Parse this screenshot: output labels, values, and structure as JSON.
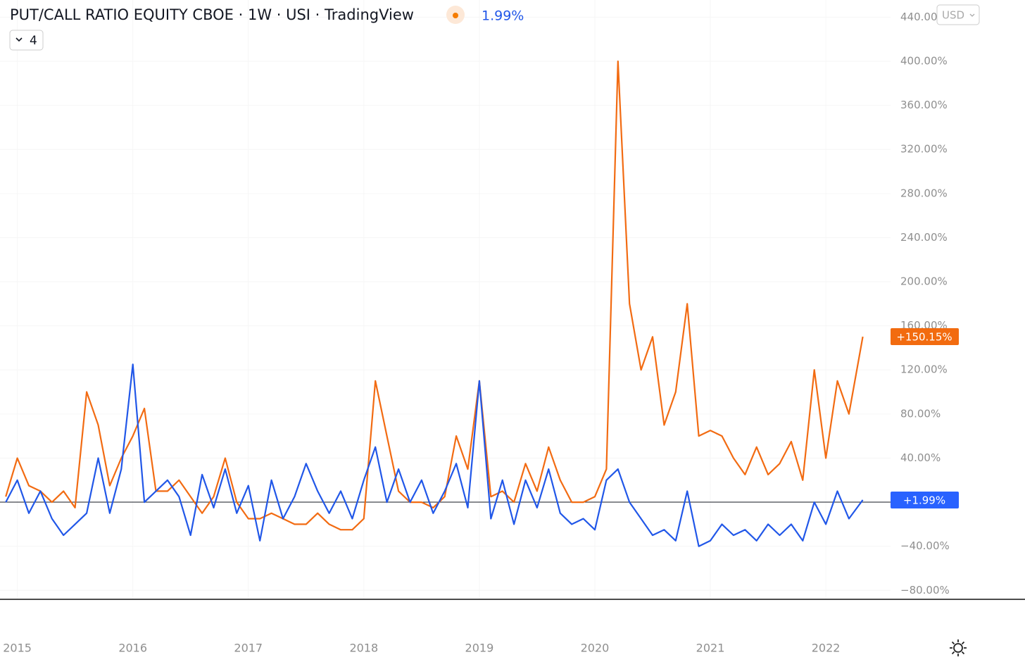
{
  "header": {
    "title": "PUT/CALL RATIO EQUITY CBOE · 1W · USI · TradingView",
    "change": "1.99%",
    "legend_count": "4",
    "currency": "USD"
  },
  "chart_data": {
    "type": "line",
    "x": [
      2014.9,
      2015.0,
      2015.1,
      2015.2,
      2015.3,
      2015.4,
      2015.5,
      2015.6,
      2015.7,
      2015.8,
      2015.9,
      2016.0,
      2016.1,
      2016.2,
      2016.3,
      2016.4,
      2016.5,
      2016.6,
      2016.7,
      2016.8,
      2016.9,
      2017.0,
      2017.1,
      2017.2,
      2017.3,
      2017.4,
      2017.5,
      2017.6,
      2017.7,
      2017.8,
      2017.9,
      2018.0,
      2018.1,
      2018.2,
      2018.3,
      2018.4,
      2018.5,
      2018.6,
      2018.7,
      2018.8,
      2018.9,
      2019.0,
      2019.1,
      2019.2,
      2019.3,
      2019.4,
      2019.5,
      2019.6,
      2019.7,
      2019.8,
      2019.9,
      2020.0,
      2020.1,
      2020.2,
      2020.3,
      2020.4,
      2020.5,
      2020.6,
      2020.7,
      2020.8,
      2020.9,
      2021.0,
      2021.1,
      2021.2,
      2021.3,
      2021.4,
      2021.5,
      2021.6,
      2021.7,
      2021.8,
      2021.9,
      2022.0,
      2022.1,
      2022.2,
      2022.32
    ],
    "series": [
      {
        "color": "#f26b12",
        "label_color": "#f26b0f",
        "values": [
          5,
          40,
          15,
          10,
          0,
          10,
          -5,
          100,
          70,
          15,
          40,
          60,
          85,
          10,
          10,
          20,
          5,
          -10,
          5,
          40,
          0,
          -15,
          -15,
          -10,
          -15,
          -20,
          -20,
          -10,
          -20,
          -25,
          -25,
          -15,
          110,
          60,
          10,
          0,
          0,
          -5,
          5,
          60,
          30,
          110,
          5,
          10,
          0,
          35,
          10,
          50,
          20,
          0,
          0,
          5,
          30,
          400,
          180,
          120,
          150,
          70,
          100,
          180,
          60,
          65,
          60,
          40,
          25,
          50,
          25,
          35,
          55,
          20,
          120,
          40,
          110,
          80,
          150.15
        ],
        "value_labels": [
          null,
          null,
          null,
          null,
          null,
          null,
          null,
          null,
          null,
          null,
          null,
          null,
          null,
          null,
          null,
          null,
          null,
          null,
          null,
          null,
          null,
          null,
          null,
          null,
          null,
          null,
          null,
          null,
          null,
          null,
          null,
          null,
          null,
          null,
          null,
          null,
          null,
          null,
          null,
          null,
          null,
          null,
          null,
          null,
          null,
          null,
          null,
          null,
          null,
          null,
          null,
          null,
          null,
          null,
          null,
          null,
          null,
          null,
          null,
          null,
          null,
          null,
          null,
          null,
          null,
          null,
          null,
          null,
          null,
          null,
          null,
          null,
          null,
          null,
          "+150.15%"
        ]
      },
      {
        "color": "#2157e8",
        "label_color": "#2962ff",
        "values": [
          0,
          20,
          -10,
          10,
          -15,
          -30,
          -20,
          -10,
          40,
          -10,
          30,
          125,
          0,
          10,
          20,
          5,
          -30,
          25,
          -5,
          30,
          -10,
          15,
          -35,
          20,
          -15,
          5,
          35,
          10,
          -10,
          10,
          -15,
          20,
          50,
          0,
          30,
          0,
          20,
          -10,
          10,
          35,
          -5,
          110,
          -15,
          20,
          -20,
          20,
          -5,
          30,
          -10,
          -20,
          -15,
          -25,
          20,
          30,
          0,
          -15,
          -30,
          -25,
          -35,
          10,
          -40,
          -35,
          -20,
          -30,
          -25,
          -35,
          -20,
          -30,
          -20,
          -35,
          0,
          -20,
          10,
          -15,
          1.99
        ],
        "value_labels": [
          null,
          null,
          null,
          null,
          null,
          null,
          null,
          null,
          null,
          null,
          null,
          null,
          null,
          null,
          null,
          null,
          null,
          null,
          null,
          null,
          null,
          null,
          null,
          null,
          null,
          null,
          null,
          null,
          null,
          null,
          null,
          null,
          null,
          null,
          null,
          null,
          null,
          null,
          null,
          null,
          null,
          null,
          null,
          null,
          null,
          null,
          null,
          null,
          null,
          null,
          null,
          null,
          null,
          null,
          null,
          null,
          null,
          null,
          null,
          null,
          null,
          null,
          null,
          null,
          null,
          null,
          null,
          null,
          null,
          null,
          null,
          null,
          null,
          null,
          "+1.99%"
        ]
      }
    ],
    "xlim": [
      2014.85,
      2022.56
    ],
    "xticks": [
      2015,
      2016,
      2017,
      2018,
      2019,
      2020,
      2021,
      2022
    ],
    "ylim": [
      -87.5,
      455.6
    ],
    "yticks": [
      {
        "value": -80,
        "label": "−80.00%"
      },
      {
        "value": -40,
        "label": "−40.00%"
      },
      {
        "value": 40,
        "label": "40.00%"
      },
      {
        "value": 80,
        "label": "80.00%"
      },
      {
        "value": 120,
        "label": "120.00%"
      },
      {
        "value": 160,
        "label": "160.00%"
      },
      {
        "value": 200,
        "label": "200.00%"
      },
      {
        "value": 240,
        "label": "240.00%"
      },
      {
        "value": 280,
        "label": "280.00%"
      },
      {
        "value": 320,
        "label": "320.00%"
      },
      {
        "value": 360,
        "label": "360.00%"
      },
      {
        "value": 400,
        "label": "400.00%"
      },
      {
        "value": 440,
        "label": "440.00%"
      }
    ],
    "grid": true
  }
}
